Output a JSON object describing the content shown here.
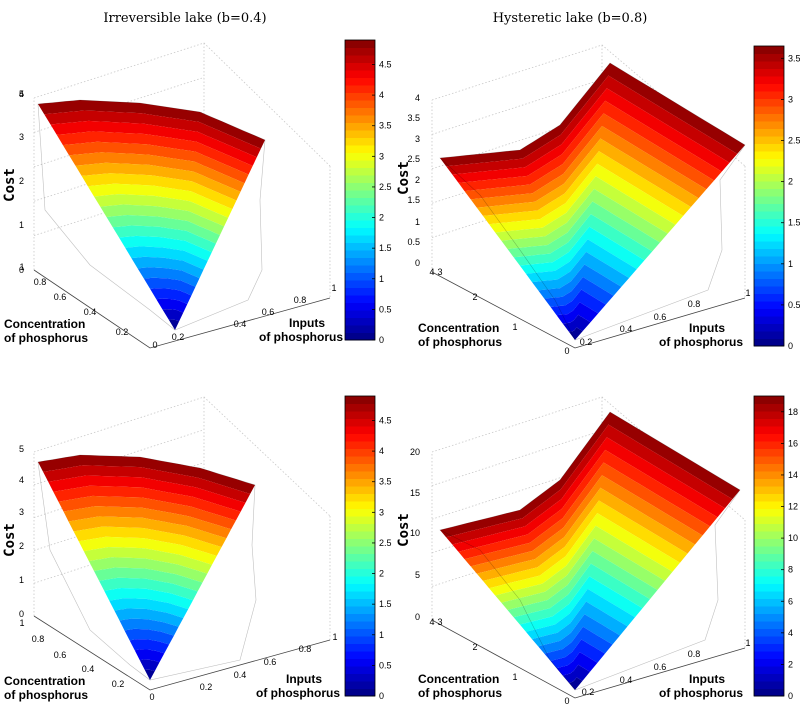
{
  "titles": [
    "Irreversible lake (b=0.4)",
    "Hysteretic lake (b=0.8)"
  ],
  "chart_data": [
    {
      "type": "surface",
      "panel": "top-left",
      "title": "Irreversible lake (b=0.4)",
      "xlabel": [
        "Inputs",
        "of phosphorus"
      ],
      "ylabel": [
        "Concentration",
        "of phosphorus"
      ],
      "zlabel": "Cost",
      "xticks": [
        "0.2",
        "0.4",
        "0.6",
        "0.8",
        "1"
      ],
      "yticks": [
        "0",
        "0.2",
        "0.4",
        "0.6",
        "0.8",
        "1"
      ],
      "zticks": [
        "0",
        "1",
        "2",
        "3",
        "4",
        "5"
      ],
      "zlim": [
        0,
        5
      ],
      "colorbar": {
        "ticks": [
          "0",
          "0.5",
          "1",
          "1.5",
          "2",
          "2.5",
          "3",
          "3.5",
          "4",
          "4.5"
        ],
        "range": [
          0,
          4.9
        ]
      },
      "colormap": "jet"
    },
    {
      "type": "surface",
      "panel": "top-right",
      "title": "Hysteretic lake (b=0.8)",
      "xlabel": [
        "Inputs",
        "of phosphorus"
      ],
      "ylabel": [
        "Concentration",
        "of phosphorus"
      ],
      "zlabel": "Cost",
      "xticks": [
        "0.2",
        "0.4",
        "0.6",
        "0.8",
        "1"
      ],
      "yticks": [
        "0",
        "1",
        "2",
        "3",
        "4"
      ],
      "zticks": [
        "0",
        "0.5",
        "1",
        "1.5",
        "2",
        "2.5",
        "3",
        "3.5",
        "4"
      ],
      "zlim": [
        0,
        4
      ],
      "colorbar": {
        "ticks": [
          "0",
          "0.5",
          "1",
          "1.5",
          "2",
          "2.5",
          "3",
          "3.5"
        ],
        "range": [
          0,
          3.65
        ]
      },
      "colormap": "jet"
    },
    {
      "type": "surface",
      "panel": "bottom-left",
      "title": "",
      "xlabel": [
        "Inputs",
        "of phosphorus"
      ],
      "ylabel": [
        "Concentration",
        "of phosphorus"
      ],
      "zlabel": "Cost",
      "xticks": [
        "0.2",
        "0.4",
        "0.6",
        "0.8",
        "1"
      ],
      "yticks": [
        "0",
        "0.2",
        "0.4",
        "0.6",
        "0.8",
        "1"
      ],
      "zticks": [
        "0",
        "1",
        "2",
        "3",
        "4",
        "5"
      ],
      "zlim": [
        0,
        5
      ],
      "colorbar": {
        "ticks": [
          "0",
          "0.5",
          "1",
          "1.5",
          "2",
          "2.5",
          "3",
          "3.5",
          "4",
          "4.5"
        ],
        "range": [
          0,
          4.9
        ]
      },
      "colormap": "jet"
    },
    {
      "type": "surface",
      "panel": "bottom-right",
      "title": "",
      "xlabel": [
        "Inputs",
        "of phosphorus"
      ],
      "ylabel": [
        "Concentration",
        "of phosphorus"
      ],
      "zlabel": "Cost",
      "xticks": [
        "0.2",
        "0.4",
        "0.6",
        "0.8",
        "1"
      ],
      "yticks": [
        "0",
        "1",
        "2",
        "3",
        "4"
      ],
      "zticks": [
        "0",
        "5",
        "10",
        "15",
        "20"
      ],
      "zlim": [
        0,
        20
      ],
      "colorbar": {
        "ticks": [
          "0",
          "2",
          "4",
          "6",
          "8",
          "10",
          "12",
          "14",
          "16",
          "18"
        ],
        "range": [
          0,
          19
        ]
      },
      "colormap": "jet"
    }
  ]
}
